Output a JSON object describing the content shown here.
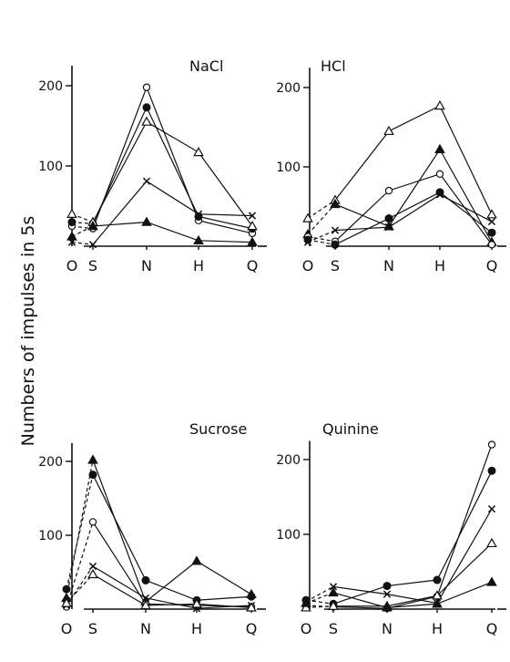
{
  "figure": {
    "ylabel": "Numbers of impulses in 5s"
  },
  "chart_data": [
    {
      "type": "line",
      "title": "NaCl",
      "categories": [
        "O",
        "S",
        "N",
        "H",
        "Q"
      ],
      "yticks": [
        100,
        200
      ],
      "ylim": [
        0,
        225
      ],
      "series": [
        {
          "marker": "open-circle",
          "values": [
            25,
            22,
            198,
            32,
            16
          ]
        },
        {
          "marker": "filled-circle",
          "values": [
            30,
            28,
            173,
            37,
            22
          ]
        },
        {
          "marker": "open-triangle",
          "values": [
            40,
            30,
            155,
            117,
            25
          ]
        },
        {
          "marker": "cross",
          "values": [
            5,
            2,
            81,
            40,
            38
          ]
        },
        {
          "marker": "filled-triangle",
          "values": [
            12,
            25,
            30,
            7,
            5
          ]
        }
      ]
    },
    {
      "type": "line",
      "title": "HCl",
      "categories": [
        "O",
        "S",
        "N",
        "H",
        "Q"
      ],
      "yticks": [
        100,
        200
      ],
      "ylim": [
        0,
        225
      ],
      "series": [
        {
          "marker": "open-triangle",
          "values": [
            35,
            58,
            145,
            177,
            40
          ]
        },
        {
          "marker": "filled-triangle",
          "values": [
            15,
            53,
            25,
            122,
            5
          ]
        },
        {
          "marker": "open-circle",
          "values": [
            12,
            6,
            70,
            91,
            2
          ]
        },
        {
          "marker": "filled-circle",
          "values": [
            8,
            2,
            35,
            68,
            17
          ]
        },
        {
          "marker": "cross",
          "values": [
            5,
            20,
            24,
            65,
            31
          ]
        }
      ]
    },
    {
      "type": "line",
      "title": "Sucrose",
      "categories": [
        "O",
        "S",
        "N",
        "H",
        "Q"
      ],
      "yticks": [
        100,
        200
      ],
      "ylim": [
        0,
        225
      ],
      "series": [
        {
          "marker": "filled-triangle",
          "values": [
            15,
            202,
            10,
            65,
            20
          ]
        },
        {
          "marker": "filled-circle",
          "values": [
            27,
            182,
            39,
            12,
            17
          ]
        },
        {
          "marker": "open-circle",
          "values": [
            3,
            118,
            7,
            5,
            3
          ]
        },
        {
          "marker": "cross",
          "values": [
            5,
            58,
            15,
            1,
            5
          ]
        },
        {
          "marker": "open-triangle",
          "values": [
            8,
            47,
            5,
            7,
            2
          ]
        }
      ]
    },
    {
      "type": "line",
      "title": "Quinine",
      "categories": [
        "O",
        "S",
        "N",
        "H",
        "Q"
      ],
      "yticks": [
        100,
        200
      ],
      "ylim": [
        0,
        225
      ],
      "series": [
        {
          "marker": "open-circle",
          "values": [
            5,
            3,
            1,
            17,
            220
          ]
        },
        {
          "marker": "filled-circle",
          "values": [
            12,
            7,
            31,
            39,
            185
          ]
        },
        {
          "marker": "cross",
          "values": [
            10,
            30,
            20,
            8,
            134
          ]
        },
        {
          "marker": "open-triangle",
          "values": [
            2,
            4,
            4,
            18,
            88
          ]
        },
        {
          "marker": "filled-triangle",
          "values": [
            8,
            22,
            2,
            7,
            36
          ]
        }
      ]
    }
  ]
}
